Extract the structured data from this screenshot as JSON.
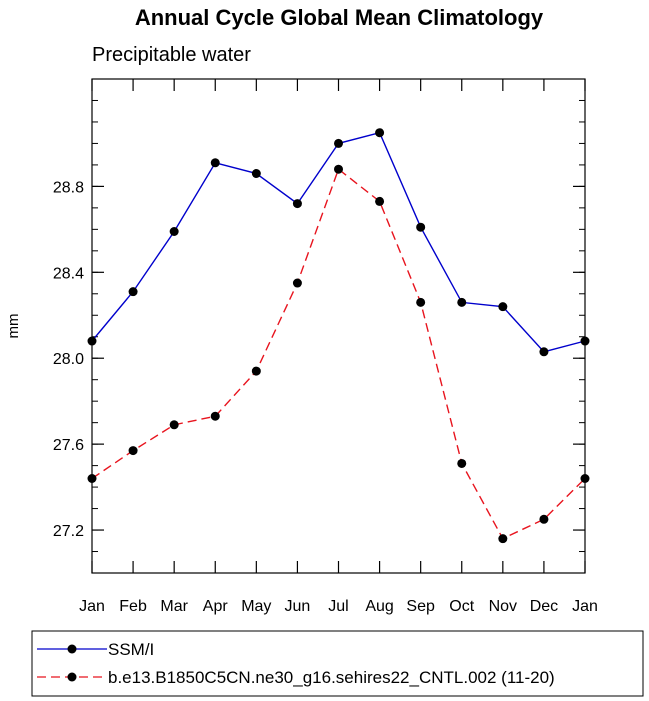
{
  "chart_data": {
    "type": "line",
    "title": "Annual Cycle Global Mean Climatology",
    "subtitle": "Precipitable water",
    "ylabel": "mm",
    "xlabel": "",
    "categories": [
      "Jan",
      "Feb",
      "Mar",
      "Apr",
      "May",
      "Jun",
      "Jul",
      "Aug",
      "Sep",
      "Oct",
      "Nov",
      "Dec",
      "Jan"
    ],
    "ylim": [
      27.0,
      29.3
    ],
    "yticks": [
      27.2,
      27.6,
      28.0,
      28.4,
      28.8
    ],
    "ytick_labels": [
      "27.2",
      "27.6",
      "28.0",
      "28.4",
      "28.8"
    ],
    "series": [
      {
        "name": "SSM/I",
        "color": "#0000cc",
        "dash": "solid",
        "values": [
          28.08,
          28.31,
          28.59,
          28.91,
          28.86,
          28.72,
          29.0,
          29.05,
          28.61,
          28.26,
          28.24,
          28.03,
          28.08
        ]
      },
      {
        "name": "b.e13.B1850C5CN.ne30_g16.sehires22_CNTL.002 (11-20)",
        "color": "#e8141e",
        "dash": "dashed",
        "values": [
          27.44,
          27.57,
          27.69,
          27.73,
          27.94,
          28.35,
          28.88,
          28.73,
          28.26,
          27.51,
          27.16,
          27.25,
          27.44
        ]
      }
    ],
    "legend": "bottom",
    "grid": false
  }
}
